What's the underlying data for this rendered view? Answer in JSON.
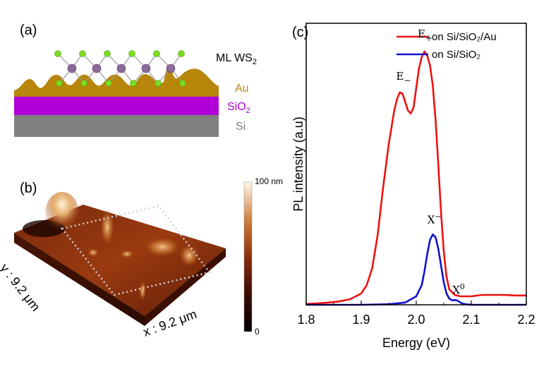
{
  "panel_a": {
    "label": "(a)",
    "layers": {
      "monolayer": "ML WS",
      "monolayer_sub": "2",
      "gold": "Au",
      "oxide": "SiO",
      "oxide_sub": "2",
      "silicon": "Si"
    },
    "colors": {
      "gold": "#b8860b",
      "oxide": "#b000d8",
      "silicon": "#808080",
      "chalcogen": "#7ddc1f",
      "metal": "#8a6a96"
    }
  },
  "panel_b": {
    "label": "(b)",
    "colorbar_max": "100 nm",
    "colorbar_min": "0",
    "x_scan": "x : 9.2 μm",
    "y_scan": "y : 9.2 μm"
  },
  "chart_data": {
    "type": "line",
    "panel_label": "(c)",
    "xlabel": "Energy (eV)",
    "ylabel": "PL intensity (a.u)",
    "xlim": [
      1.8,
      2.2
    ],
    "ylim": [
      0,
      1.0
    ],
    "x_ticks": [
      "1.8",
      "1.9",
      "2.0",
      "2.1",
      "2.2"
    ],
    "legend_position": "top-right",
    "series": [
      {
        "name": "on Si/SiO₂/Au",
        "color": "#ee1111",
        "x": [
          1.8,
          1.82,
          1.84,
          1.86,
          1.88,
          1.9,
          1.91,
          1.92,
          1.93,
          1.94,
          1.95,
          1.96,
          1.965,
          1.97,
          1.975,
          1.98,
          1.985,
          1.99,
          1.995,
          2.0,
          2.005,
          2.01,
          2.015,
          2.02,
          2.025,
          2.03,
          2.035,
          2.04,
          2.045,
          2.05,
          2.055,
          2.06,
          2.07,
          2.08,
          2.1,
          2.12,
          2.14,
          2.16,
          2.18,
          2.2
        ],
        "y": [
          0.003,
          0.005,
          0.008,
          0.012,
          0.02,
          0.04,
          0.07,
          0.13,
          0.25,
          0.42,
          0.57,
          0.69,
          0.73,
          0.755,
          0.75,
          0.72,
          0.69,
          0.68,
          0.7,
          0.77,
          0.84,
          0.88,
          0.9,
          0.885,
          0.85,
          0.78,
          0.66,
          0.5,
          0.33,
          0.19,
          0.1,
          0.055,
          0.035,
          0.03,
          0.03,
          0.035,
          0.035,
          0.035,
          0.033,
          0.033
        ]
      },
      {
        "name": "on Si/SiO₂",
        "color": "#1111cc",
        "x": [
          1.8,
          1.86,
          1.9,
          1.95,
          1.98,
          2.0,
          2.01,
          2.015,
          2.02,
          2.025,
          2.03,
          2.035,
          2.04,
          2.045,
          2.05,
          2.055,
          2.06,
          2.065,
          2.07,
          2.075,
          2.08,
          2.085,
          2.09,
          2.1,
          2.15,
          2.2
        ],
        "y": [
          0.0,
          0.0,
          0.0,
          0.002,
          0.008,
          0.03,
          0.07,
          0.12,
          0.18,
          0.23,
          0.25,
          0.24,
          0.2,
          0.14,
          0.08,
          0.04,
          0.022,
          0.016,
          0.017,
          0.015,
          0.008,
          0.004,
          0.002,
          0.0,
          0.0,
          0.0
        ]
      }
    ],
    "annotations": [
      {
        "text": "E",
        "sub": "−",
        "x": 1.977,
        "y": 0.8
      },
      {
        "text": "E",
        "sub": "+",
        "x": 2.016,
        "y": 0.95
      },
      {
        "text": "X",
        "sup": "−",
        "x": 2.033,
        "y": 0.29
      },
      {
        "text": "X",
        "sup": "0",
        "x": 2.077,
        "y": 0.04
      }
    ]
  }
}
